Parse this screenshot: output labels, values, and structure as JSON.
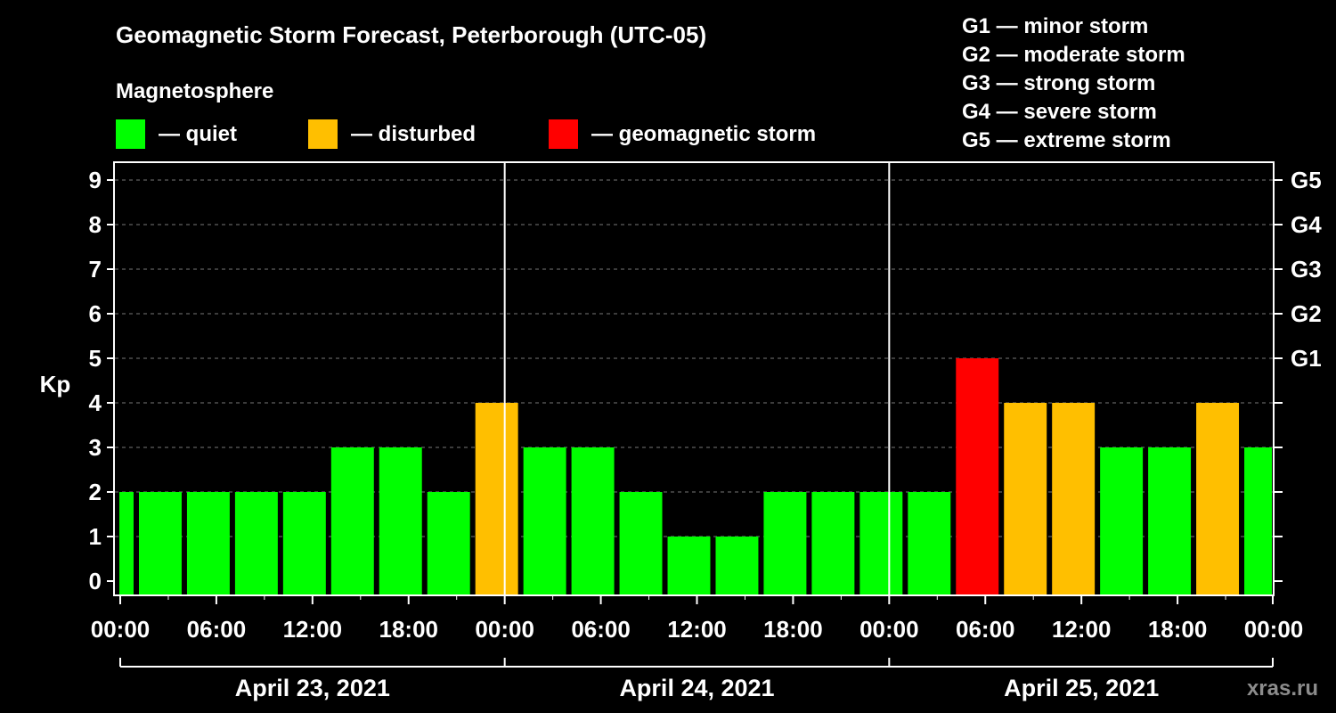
{
  "header": {
    "title": "Geomagnetic Storm Forecast, Peterborough (UTC-05)",
    "subtitle": "Magnetosphere",
    "watermark": "xras.ru"
  },
  "legend": {
    "status_items": [
      {
        "label": "— quiet",
        "color": "#00ff00"
      },
      {
        "label": "— disturbed",
        "color": "#ffbf00"
      },
      {
        "label": "— geomagnetic storm",
        "color": "#ff0000"
      }
    ],
    "storm_scale": [
      "G1 — minor storm",
      "G2 — moderate storm",
      "G3 — strong storm",
      "G4 — severe storm",
      "G5 — extreme storm"
    ]
  },
  "chart_data": {
    "type": "bar",
    "title": "Geomagnetic Storm Forecast, Peterborough (UTC-05)",
    "ylabel": "Kp",
    "xlabel": "",
    "ylim": [
      0,
      9
    ],
    "grid": true,
    "y_ticks": [
      "0",
      "1",
      "2",
      "3",
      "4",
      "5",
      "6",
      "7",
      "8",
      "9"
    ],
    "right_ticks": [
      {
        "kp": 5,
        "label": "G1"
      },
      {
        "kp": 6,
        "label": "G2"
      },
      {
        "kp": 7,
        "label": "G3"
      },
      {
        "kp": 8,
        "label": "G4"
      },
      {
        "kp": 9,
        "label": "G5"
      }
    ],
    "x_range_hours": [
      0,
      72
    ],
    "x_tick_labels": [
      {
        "hour": 0,
        "label": "00:00"
      },
      {
        "hour": 6,
        "label": "06:00"
      },
      {
        "hour": 12,
        "label": "12:00"
      },
      {
        "hour": 18,
        "label": "18:00"
      },
      {
        "hour": 24,
        "label": "00:00"
      },
      {
        "hour": 30,
        "label": "06:00"
      },
      {
        "hour": 36,
        "label": "12:00"
      },
      {
        "hour": 42,
        "label": "18:00"
      },
      {
        "hour": 48,
        "label": "00:00"
      },
      {
        "hour": 54,
        "label": "06:00"
      },
      {
        "hour": 60,
        "label": "12:00"
      },
      {
        "hour": 66,
        "label": "18:00"
      },
      {
        "hour": 72,
        "label": "00:00"
      }
    ],
    "days": [
      {
        "label": "April 23, 2021",
        "start_hour": 0,
        "end_hour": 24
      },
      {
        "label": "April 24, 2021",
        "start_hour": 24,
        "end_hour": 48
      },
      {
        "label": "April 25, 2021",
        "start_hour": 48,
        "end_hour": 72
      }
    ],
    "bars": [
      {
        "start_hour": -2,
        "kp": 2,
        "status": "quiet"
      },
      {
        "start_hour": 1,
        "kp": 2,
        "status": "quiet"
      },
      {
        "start_hour": 4,
        "kp": 2,
        "status": "quiet"
      },
      {
        "start_hour": 7,
        "kp": 2,
        "status": "quiet"
      },
      {
        "start_hour": 10,
        "kp": 2,
        "status": "quiet"
      },
      {
        "start_hour": 13,
        "kp": 3,
        "status": "quiet"
      },
      {
        "start_hour": 16,
        "kp": 3,
        "status": "quiet"
      },
      {
        "start_hour": 19,
        "kp": 2,
        "status": "quiet"
      },
      {
        "start_hour": 22,
        "kp": 4,
        "status": "disturbed"
      },
      {
        "start_hour": 25,
        "kp": 3,
        "status": "quiet"
      },
      {
        "start_hour": 28,
        "kp": 3,
        "status": "quiet"
      },
      {
        "start_hour": 31,
        "kp": 2,
        "status": "quiet"
      },
      {
        "start_hour": 34,
        "kp": 1,
        "status": "quiet"
      },
      {
        "start_hour": 37,
        "kp": 1,
        "status": "quiet"
      },
      {
        "start_hour": 40,
        "kp": 2,
        "status": "quiet"
      },
      {
        "start_hour": 43,
        "kp": 2,
        "status": "quiet"
      },
      {
        "start_hour": 46,
        "kp": 2,
        "status": "quiet"
      },
      {
        "start_hour": 49,
        "kp": 2,
        "status": "quiet"
      },
      {
        "start_hour": 52,
        "kp": 5,
        "status": "storm"
      },
      {
        "start_hour": 55,
        "kp": 4,
        "status": "disturbed"
      },
      {
        "start_hour": 58,
        "kp": 4,
        "status": "disturbed"
      },
      {
        "start_hour": 61,
        "kp": 3,
        "status": "quiet"
      },
      {
        "start_hour": 64,
        "kp": 3,
        "status": "quiet"
      },
      {
        "start_hour": 67,
        "kp": 4,
        "status": "disturbed"
      },
      {
        "start_hour": 70,
        "kp": 3,
        "status": "quiet"
      }
    ],
    "status_colors": {
      "quiet": "#00ff00",
      "disturbed": "#ffbf00",
      "storm": "#ff0000"
    }
  }
}
